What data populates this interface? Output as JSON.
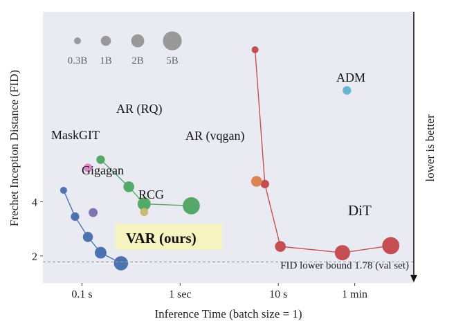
{
  "chart_data": {
    "type": "scatter",
    "xlabel": "Inference Time (batch size = 1)",
    "ylabel": "Frechet Inception Distance (FID)",
    "x_scale": "log",
    "x_unit": "seconds",
    "xlim": [
      0.04,
      240
    ],
    "ylim": [
      1.0,
      11.0
    ],
    "x_ticks": [
      {
        "value": 0.1,
        "label": "0.1 s"
      },
      {
        "value": 1,
        "label": "1 sec"
      },
      {
        "value": 10,
        "label": "10 s"
      },
      {
        "value": 60,
        "label": "1 min"
      }
    ],
    "y_ticks": [
      {
        "value": 2,
        "label": "2"
      },
      {
        "value": 4,
        "label": "4"
      }
    ],
    "grid": false,
    "size_legend": {
      "placement": "top-left",
      "entries": [
        {
          "label": "0.3B",
          "params_b": 0.3
        },
        {
          "label": "1B",
          "params_b": 1
        },
        {
          "label": "2B",
          "params_b": 2
        },
        {
          "label": "5B",
          "params_b": 5
        }
      ]
    },
    "series": [
      {
        "label": "VAR (ours)",
        "color": "#4c72b0",
        "connected": true,
        "points": [
          {
            "x": 0.065,
            "y": 4.42,
            "params_b": 0.3
          },
          {
            "x": 0.085,
            "y": 3.45,
            "params_b": 0.6
          },
          {
            "x": 0.115,
            "y": 2.7,
            "params_b": 1.0
          },
          {
            "x": 0.155,
            "y": 2.12,
            "params_b": 1.5
          },
          {
            "x": 0.25,
            "y": 1.73,
            "params_b": 2.5
          }
        ]
      },
      {
        "label": "AR (RQ)",
        "color": "#55a868",
        "connected": true,
        "points": [
          {
            "x": 0.155,
            "y": 5.55,
            "params_b": 0.6
          },
          {
            "x": 0.3,
            "y": 4.55,
            "params_b": 1.2
          },
          {
            "x": 0.43,
            "y": 3.92,
            "params_b": 2.0
          },
          {
            "x": 1.3,
            "y": 3.85,
            "params_b": 4.0
          }
        ]
      },
      {
        "label": "DiT",
        "color": "#c44e52",
        "connected": true,
        "points": [
          {
            "x": 5.8,
            "y": 9.6,
            "params_b": 0.3
          },
          {
            "x": 7.3,
            "y": 4.65,
            "params_b": 0.6
          },
          {
            "x": 10.5,
            "y": 2.35,
            "params_b": 1.2
          },
          {
            "x": 45,
            "y": 2.12,
            "params_b": 3.0
          },
          {
            "x": 140,
            "y": 2.38,
            "params_b": 4.0
          }
        ]
      },
      {
        "label": "MaskGIT",
        "color": "#da8bc3",
        "connected": false,
        "points": [
          {
            "x": 0.115,
            "y": 5.25,
            "params_b": 0.6
          }
        ]
      },
      {
        "label": "Gigagan",
        "color": "#8172b3",
        "connected": false,
        "points": [
          {
            "x": 0.13,
            "y": 3.6,
            "params_b": 0.7
          }
        ]
      },
      {
        "label": "RCG",
        "color": "#ccb974",
        "connected": false,
        "points": [
          {
            "x": 0.43,
            "y": 3.62,
            "params_b": 0.5
          }
        ]
      },
      {
        "label": "AR (vqgan)",
        "color": "#dd8452",
        "connected": false,
        "points": [
          {
            "x": 6.0,
            "y": 4.75,
            "params_b": 1.2
          }
        ]
      },
      {
        "label": "ADM",
        "color": "#64b5cd",
        "connected": false,
        "points": [
          {
            "x": 50,
            "y": 8.1,
            "params_b": 0.6
          }
        ]
      }
    ],
    "annotations": {
      "fid_lower_bound": {
        "value": 1.78,
        "label": "FID lower bound 1.78 (val set)"
      },
      "right_arrow_label": "lower is better"
    }
  }
}
